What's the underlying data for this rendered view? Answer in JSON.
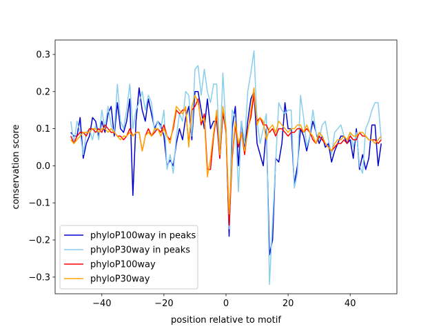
{
  "chart_data": {
    "type": "line",
    "xlabel": "position relative to motif",
    "ylabel": "conservation score",
    "xlim": [
      -55.05,
      55.05
    ],
    "ylim": [
      -0.345,
      0.339
    ],
    "xticks": [
      {
        "value": -40,
        "label": "−40"
      },
      {
        "value": -20,
        "label": "−20"
      },
      0,
      20,
      40
    ],
    "yticks": [
      {
        "value": -0.3,
        "label": "−0.3"
      },
      {
        "value": -0.2,
        "label": "−0.2"
      },
      {
        "value": -0.1,
        "label": "−0.1"
      },
      {
        "value": 0,
        "label": "0.0"
      },
      0.1,
      0.2,
      0.3
    ],
    "legend": "lower left",
    "grid": false,
    "x": [
      -50,
      -49,
      -48,
      -47,
      -46,
      -45,
      -44,
      -43,
      -42,
      -41,
      -40,
      -39,
      -38,
      -37,
      -36,
      -35,
      -34,
      -33,
      -32,
      -31,
      -30,
      -29,
      -28,
      -27,
      -26,
      -25,
      -24,
      -23,
      -22,
      -21,
      -20,
      -19,
      -18,
      -17,
      -16,
      -15,
      -14,
      -13,
      -12,
      -11,
      -10,
      -9,
      -8,
      -7,
      -6,
      -5,
      -4,
      -3,
      -2,
      -1,
      0,
      1,
      2,
      3,
      4,
      5,
      6,
      7,
      8,
      9,
      10,
      11,
      12,
      13,
      14,
      15,
      16,
      17,
      18,
      19,
      20,
      21,
      22,
      23,
      24,
      25,
      26,
      27,
      28,
      29,
      30,
      31,
      32,
      33,
      34,
      35,
      36,
      37,
      38,
      39,
      40,
      41,
      42,
      43,
      44,
      45,
      46,
      47,
      48,
      49,
      50
    ],
    "series": [
      {
        "name": "phyloP100way in peaks",
        "color": "#0000cd",
        "values": [
          0.09,
          0.08,
          0.08,
          0.13,
          0.02,
          0.06,
          0.08,
          0.13,
          0.12,
          0.08,
          0.12,
          0.09,
          0.14,
          0.16,
          0.08,
          0.17,
          0.1,
          0.09,
          0.12,
          0.18,
          -0.08,
          0.12,
          0.21,
          0.15,
          0.12,
          0.18,
          0.14,
          0.1,
          0.12,
          0.11,
          0.08,
          0.0,
          0.015,
          0.0,
          0.06,
          0.1,
          0.07,
          0.13,
          0.16,
          0.07,
          0.2,
          0.2,
          0.15,
          0.1,
          0.18,
          0.1,
          0.12,
          0.12,
          0.02,
          0.14,
          0.1,
          -0.19,
          0.1,
          0.16,
          0.0,
          0.12,
          0.04,
          0.12,
          0.18,
          0.2,
          0.06,
          0.03,
          0.0,
          0.1,
          -0.24,
          -0.2,
          0.02,
          0.01,
          0.06,
          0.17,
          0.1,
          0.1,
          -0.05,
          0.0,
          0.1,
          0.08,
          0.04,
          0.08,
          0.12,
          0.09,
          0.06,
          0.08,
          0.05,
          0.06,
          0.01,
          0.04,
          0.06,
          0.08,
          0.08,
          0.06,
          0.07,
          0.02,
          0.1,
          -0.01,
          0.03,
          -0.01,
          0.02,
          0.11,
          0.11,
          0.0,
          0.06
        ]
      },
      {
        "name": "phyloP30way in peaks",
        "color": "#87ceeb",
        "values": [
          0.12,
          0.06,
          0.12,
          0.09,
          0.03,
          0.09,
          0.1,
          0.07,
          0.11,
          0.07,
          0.15,
          0.1,
          0.16,
          0.11,
          0.09,
          0.22,
          0.12,
          0.1,
          0.15,
          0.22,
          0.1,
          0.15,
          0.17,
          0.2,
          0.15,
          0.19,
          0.17,
          0.09,
          0.12,
          0.1,
          0.15,
          -0.01,
          0.03,
          -0.02,
          0.08,
          0.14,
          0.12,
          0.2,
          0.19,
          0.08,
          0.26,
          0.27,
          0.19,
          0.26,
          0.2,
          0.17,
          0.22,
          0.22,
          0.03,
          0.25,
          0.1,
          -0.17,
          0.15,
          0.13,
          -0.07,
          0.12,
          0.06,
          0.2,
          0.25,
          0.31,
          0.12,
          0.06,
          0.1,
          0.14,
          -0.32,
          -0.15,
          0.01,
          0.17,
          0.15,
          0.14,
          0.15,
          0.15,
          -0.06,
          -0.02,
          0.19,
          0.13,
          0.05,
          0.08,
          0.15,
          0.09,
          0.07,
          0.11,
          0.12,
          0.07,
          0.03,
          0.09,
          0.1,
          0.11,
          0.08,
          0.07,
          0.09,
          0.05,
          0.09,
          0.0,
          -0.02,
          0.1,
          0.12,
          0.15,
          0.17,
          0.17,
          0.07
        ]
      },
      {
        "name": "phyloP100way",
        "color": "#ff0000",
        "values": [
          0.08,
          0.06,
          0.08,
          0.09,
          0.09,
          0.08,
          0.1,
          0.1,
          0.09,
          0.1,
          0.09,
          0.11,
          0.1,
          0.09,
          0.09,
          0.08,
          0.08,
          0.07,
          0.08,
          0.1,
          0.08,
          0.09,
          0.09,
          0.04,
          0.08,
          0.1,
          0.08,
          0.09,
          0.1,
          0.09,
          0.11,
          0.08,
          0.07,
          0.1,
          0.15,
          0.14,
          0.15,
          0.15,
          0.06,
          0.15,
          0.16,
          0.18,
          0.11,
          0.14,
          -0.01,
          -0.01,
          0.08,
          0.14,
          0.02,
          0.15,
          0.09,
          -0.16,
          0.02,
          0.11,
          0.05,
          0.09,
          0.03,
          0.1,
          0.13,
          0.19,
          0.12,
          0.13,
          0.11,
          0.11,
          0.09,
          0.1,
          0.08,
          0.1,
          0.1,
          0.09,
          0.08,
          0.09,
          0.09,
          0.1,
          0.1,
          0.09,
          0.1,
          0.09,
          0.07,
          0.06,
          0.08,
          0.07,
          0.06,
          0.05,
          0.04,
          0.05,
          0.06,
          0.06,
          0.07,
          0.06,
          0.08,
          0.07,
          0.07,
          0.09,
          0.08,
          0.08,
          0.07,
          0.07,
          0.07,
          0.06,
          0.07
        ]
      },
      {
        "name": "phyloP30way",
        "color": "#ffa500",
        "values": [
          0.07,
          0.06,
          0.07,
          0.08,
          0.09,
          0.09,
          0.09,
          0.1,
          0.1,
          0.09,
          0.1,
          0.1,
          0.09,
          0.1,
          0.09,
          0.08,
          0.07,
          0.08,
          0.08,
          0.09,
          0.08,
          0.09,
          0.09,
          0.04,
          0.08,
          0.09,
          0.08,
          0.1,
          0.1,
          0.08,
          0.1,
          0.08,
          0.06,
          0.11,
          0.16,
          0.15,
          0.14,
          0.16,
          0.05,
          0.16,
          0.19,
          0.17,
          0.12,
          0.13,
          -0.03,
          0.02,
          0.09,
          0.15,
          0.03,
          0.16,
          0.1,
          -0.13,
          0.03,
          0.12,
          0.06,
          0.09,
          0.04,
          0.09,
          0.15,
          0.21,
          0.11,
          0.13,
          0.12,
          0.07,
          0.1,
          0.11,
          0.09,
          0.12,
          0.11,
          0.1,
          0.09,
          0.1,
          0.1,
          0.11,
          0.11,
          0.09,
          0.11,
          0.09,
          0.08,
          0.06,
          0.09,
          0.08,
          0.06,
          0.05,
          0.04,
          0.06,
          0.07,
          0.07,
          0.08,
          0.07,
          0.09,
          0.08,
          0.08,
          0.09,
          0.09,
          0.08,
          0.07,
          0.07,
          0.06,
          0.07,
          0.08
        ]
      }
    ]
  }
}
